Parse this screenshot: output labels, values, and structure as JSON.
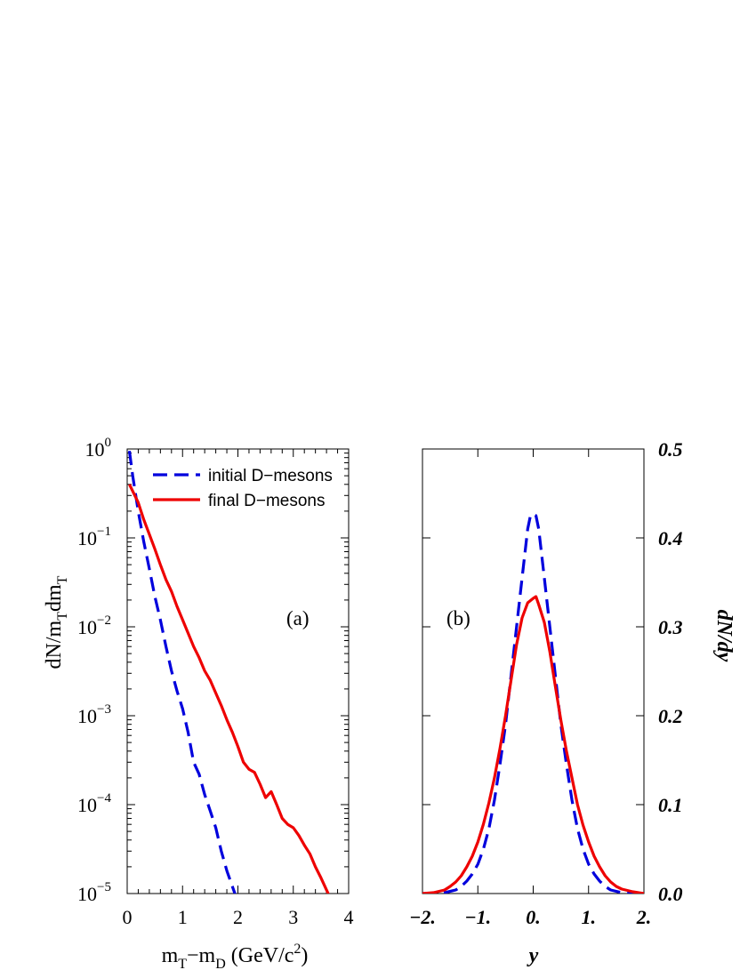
{
  "chart_data": [
    {
      "type": "line",
      "panel_label": "(a)",
      "xlabel": {
        "main": "m",
        "sub1": "T",
        "mid": "−m",
        "sub2": "D",
        "unit_open": " (GeV/c",
        "sup": "2",
        "unit_close": ")"
      },
      "ylabel": {
        "p1": "dN/m",
        "s1": "T",
        "p2": "dm",
        "s2": "T"
      },
      "xlim": [
        0,
        4
      ],
      "ylim": [
        1e-05,
        1
      ],
      "yscale": "log",
      "xticks": [
        0,
        1,
        2,
        3,
        4
      ],
      "xtick_labels": [
        "0",
        "1",
        "2",
        "3",
        "4"
      ],
      "yticks": [
        {
          "value": 1,
          "base": "10",
          "exp": "0"
        },
        {
          "value": 0.1,
          "base": "10",
          "exp": "−1"
        },
        {
          "value": 0.01,
          "base": "10",
          "exp": "−2"
        },
        {
          "value": 0.001,
          "base": "10",
          "exp": "−3"
        },
        {
          "value": 0.0001,
          "base": "10",
          "exp": "−4"
        },
        {
          "value": 1e-05,
          "base": "10",
          "exp": "−5"
        }
      ],
      "legend": {
        "position": "top-right"
      },
      "series": [
        {
          "name": "initial D−mesons",
          "color": "#0000dd",
          "style": "dashed",
          "x": [
            0.04,
            0.1,
            0.2,
            0.3,
            0.4,
            0.5,
            0.6,
            0.7,
            0.8,
            0.9,
            1.0,
            1.1,
            1.2,
            1.3,
            1.4,
            1.5,
            1.6,
            1.7,
            1.8,
            1.9,
            2.0
          ],
          "y": [
            0.95,
            0.5,
            0.2,
            0.09,
            0.045,
            0.022,
            0.012,
            0.006,
            0.0032,
            0.0019,
            0.0012,
            0.00065,
            0.0003,
            0.00022,
            0.00013,
            8.5e-05,
            5.5e-05,
            3e-05,
            1.8e-05,
            1.2e-05,
            8e-06
          ]
        },
        {
          "name": "final D−mesons",
          "color": "#ee0000",
          "style": "solid",
          "x": [
            0.04,
            0.2,
            0.3,
            0.4,
            0.5,
            0.6,
            0.7,
            0.8,
            0.9,
            1.0,
            1.1,
            1.2,
            1.3,
            1.4,
            1.5,
            1.6,
            1.7,
            1.8,
            1.9,
            2.0,
            2.1,
            2.2,
            2.3,
            2.4,
            2.5,
            2.6,
            2.7,
            2.8,
            2.9,
            3.0,
            3.1,
            3.2,
            3.3,
            3.4,
            3.5,
            3.6,
            3.7,
            3.8
          ],
          "y": [
            0.4,
            0.25,
            0.16,
            0.11,
            0.075,
            0.05,
            0.034,
            0.025,
            0.017,
            0.012,
            0.0085,
            0.006,
            0.0045,
            0.0032,
            0.0025,
            0.0018,
            0.0013,
            0.0009,
            0.00065,
            0.00045,
            0.0003,
            0.00025,
            0.00023,
            0.00017,
            0.00012,
            0.00014,
            0.0001,
            7e-05,
            6e-05,
            5.5e-05,
            4.5e-05,
            3.5e-05,
            2.8e-05,
            2e-05,
            1.5e-05,
            1.1e-05,
            8e-06,
            5e-06
          ]
        }
      ]
    },
    {
      "type": "line",
      "panel_label": "(b)",
      "xlabel": "y",
      "ylabel": "dN/dy",
      "xlim": [
        -2,
        2
      ],
      "ylim": [
        0,
        0.5
      ],
      "xticks": [
        -2,
        -1,
        0,
        1,
        2
      ],
      "xtick_labels": [
        "−2.",
        "−1.",
        "0.",
        "1.",
        "2."
      ],
      "yticks": [
        0,
        0.1,
        0.2,
        0.3,
        0.4,
        0.5
      ],
      "ytick_labels": [
        "0.0",
        "0.1",
        "0.2",
        "0.3",
        "0.4",
        "0.5"
      ],
      "series": [
        {
          "name": "initial D−mesons",
          "color": "#0000dd",
          "style": "dashed",
          "x": [
            -2.0,
            -1.8,
            -1.6,
            -1.4,
            -1.3,
            -1.2,
            -1.1,
            -1.0,
            -0.9,
            -0.8,
            -0.7,
            -0.6,
            -0.5,
            -0.4,
            -0.3,
            -0.2,
            -0.1,
            -0.05,
            0.0,
            0.05,
            0.1,
            0.2,
            0.3,
            0.4,
            0.5,
            0.6,
            0.7,
            0.8,
            0.9,
            1.0,
            1.1,
            1.2,
            1.3,
            1.4,
            1.6,
            1.8,
            2.0
          ],
          "y": [
            0.0,
            0.0,
            0.001,
            0.004,
            0.008,
            0.014,
            0.022,
            0.033,
            0.05,
            0.073,
            0.105,
            0.145,
            0.19,
            0.245,
            0.3,
            0.355,
            0.41,
            0.425,
            0.427,
            0.425,
            0.41,
            0.355,
            0.3,
            0.245,
            0.19,
            0.145,
            0.105,
            0.073,
            0.05,
            0.033,
            0.022,
            0.014,
            0.008,
            0.004,
            0.001,
            0.0,
            0.0
          ]
        },
        {
          "name": "final D−mesons",
          "color": "#ee0000",
          "style": "solid",
          "x": [
            -2.0,
            -1.8,
            -1.6,
            -1.5,
            -1.4,
            -1.3,
            -1.2,
            -1.1,
            -1.0,
            -0.9,
            -0.8,
            -0.7,
            -0.6,
            -0.5,
            -0.4,
            -0.3,
            -0.2,
            -0.1,
            0.0,
            0.05,
            0.1,
            0.2,
            0.3,
            0.4,
            0.5,
            0.6,
            0.7,
            0.8,
            0.9,
            1.0,
            1.1,
            1.2,
            1.3,
            1.4,
            1.5,
            1.6,
            1.8,
            2.0
          ],
          "y": [
            0.0,
            0.001,
            0.004,
            0.008,
            0.013,
            0.02,
            0.03,
            0.042,
            0.058,
            0.078,
            0.102,
            0.13,
            0.163,
            0.2,
            0.24,
            0.28,
            0.31,
            0.327,
            0.332,
            0.334,
            0.325,
            0.305,
            0.272,
            0.233,
            0.195,
            0.16,
            0.13,
            0.1,
            0.077,
            0.058,
            0.042,
            0.03,
            0.02,
            0.013,
            0.008,
            0.005,
            0.002,
            0.0
          ]
        }
      ]
    }
  ]
}
